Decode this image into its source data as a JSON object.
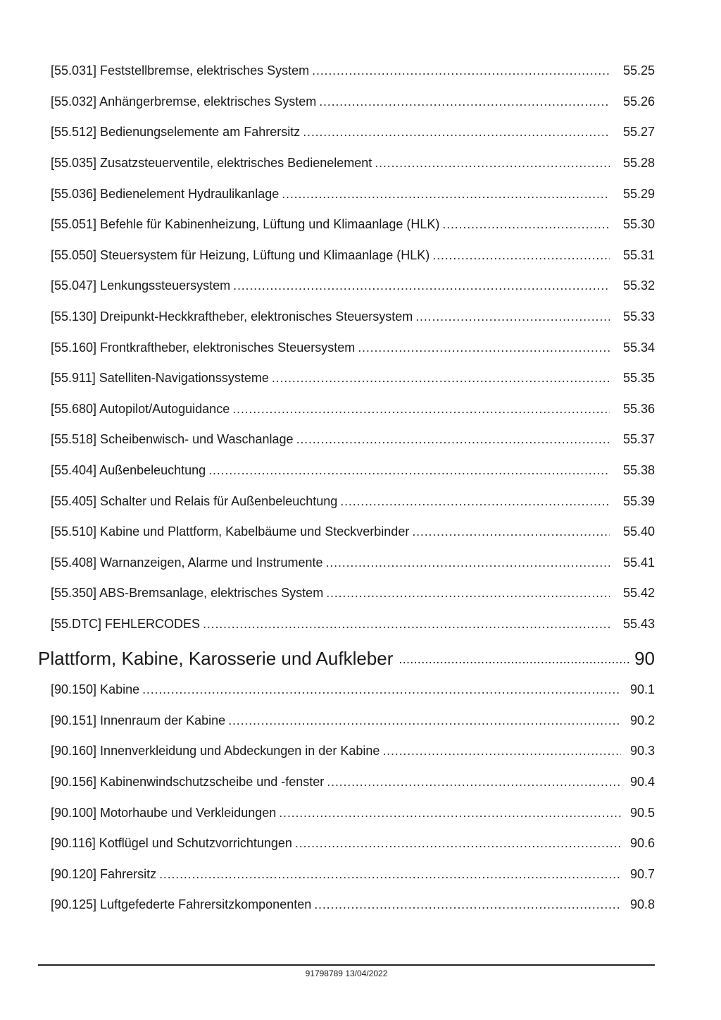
{
  "section55": [
    {
      "title": "[55.031] Feststellbremse, elektrisches System",
      "page": "55.25"
    },
    {
      "title": "[55.032] Anhängerbremse, elektrisches System",
      "page": "55.26"
    },
    {
      "title": "[55.512] Bedienungselemente am Fahrersitz",
      "page": "55.27"
    },
    {
      "title": "[55.035] Zusatzsteuerventile, elektrisches Bedienelement",
      "page": "55.28"
    },
    {
      "title": "[55.036] Bedienelement Hydraulikanlage",
      "page": "55.29"
    },
    {
      "title": "[55.051] Befehle für Kabinenheizung, Lüftung und Klimaanlage (HLK)",
      "page": "55.30"
    },
    {
      "title": "[55.050] Steuersystem für Heizung, Lüftung und Klimaanlage (HLK)",
      "page": "55.31"
    },
    {
      "title": "[55.047] Lenkungssteuersystem",
      "page": "55.32"
    },
    {
      "title": "[55.130] Dreipunkt-Heckkraftheber, elektronisches Steuersystem",
      "page": "55.33"
    },
    {
      "title": "[55.160] Frontkraftheber, elektronisches Steuersystem",
      "page": "55.34"
    },
    {
      "title": "[55.911] Satelliten-Navigationssysteme",
      "page": "55.35"
    },
    {
      "title": "[55.680] Autopilot/Autoguidance",
      "page": "55.36"
    },
    {
      "title": "[55.518] Scheibenwisch- und Waschanlage",
      "page": "55.37"
    },
    {
      "title": "[55.404] Außenbeleuchtung",
      "page": "55.38"
    },
    {
      "title": "[55.405] Schalter und Relais für Außenbeleuchtung",
      "page": "55.39"
    },
    {
      "title": "[55.510] Kabine und Plattform, Kabelbäume und Steckverbinder",
      "page": "55.40"
    },
    {
      "title": "[55.408] Warnanzeigen, Alarme und Instrumente",
      "page": "55.41"
    },
    {
      "title": "[55.350] ABS-Bremsanlage, elektrisches System",
      "page": "55.42"
    },
    {
      "title": "[55.DTC] FEHLERCODES",
      "page": "55.43"
    }
  ],
  "heading90": {
    "title": "Plattform, Kabine, Karosserie und Aufkleber",
    "page": "90"
  },
  "section90": [
    {
      "title": "[90.150] Kabine",
      "page": "90.1"
    },
    {
      "title": "[90.151] Innenraum der Kabine",
      "page": "90.2"
    },
    {
      "title": "[90.160] Innenverkleidung und Abdeckungen in der Kabine",
      "page": "90.3"
    },
    {
      "title": "[90.156] Kabinenwindschutzscheibe und -fenster",
      "page": "90.4"
    },
    {
      "title": "[90.100] Motorhaube und Verkleidungen",
      "page": "90.5"
    },
    {
      "title": "[90.116] Kotflügel und Schutzvorrichtungen",
      "page": "90.6"
    },
    {
      "title": "[90.120] Fahrersitz",
      "page": "90.7"
    },
    {
      "title": "[90.125] Luftgefederte Fahrersitzkomponenten",
      "page": "90.8"
    }
  ],
  "footer": {
    "text": "91798789 13/04/2022"
  }
}
